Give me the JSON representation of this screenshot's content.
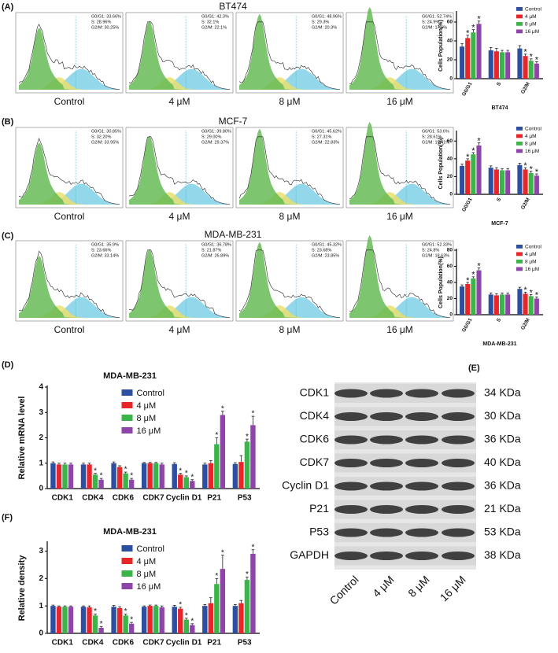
{
  "panel_labels": [
    "(A)",
    "(B)",
    "(C)",
    "(D)",
    "(E)",
    "(F)"
  ],
  "flow": [
    {
      "cell_line": "BT474",
      "conditions": [
        {
          "label": "Control",
          "stats": [
            "G0/G1: 33.66%",
            "S: 28.96%",
            "G2/M: 30.25%"
          ]
        },
        {
          "label": "4 μM",
          "stats": [
            "G0/G1: 42.3%",
            "S: 32.1%",
            "G2/M: 22.1%"
          ]
        },
        {
          "label": "8 μM",
          "stats": [
            "G0/G1: 48.96%",
            "S: 29.3%",
            "G2/M: 20.3%"
          ]
        },
        {
          "label": "16 μM",
          "stats": [
            "G0/G1: 52.74%",
            "S: 24.9%",
            "G2/M: 17.6%"
          ]
        }
      ]
    },
    {
      "cell_line": "MCF-7",
      "conditions": [
        {
          "label": "Control",
          "stats": [
            "G0/G1: 30.85%",
            "S: 32.20%",
            "G2/M: 33.95%"
          ]
        },
        {
          "label": "4 μM",
          "stats": [
            "G0/G1: 39.80%",
            "S: 29.00%",
            "G2/M: 29.37%"
          ]
        },
        {
          "label": "8 μM",
          "stats": [
            "G0/G1: 45.62%",
            "S: 27.31%",
            "G2/M: 22.83%"
          ]
        },
        {
          "label": "16 μM",
          "stats": [
            "G0/G1: 53.6%",
            "S: 28.61%",
            "G2/M: 19.41%"
          ]
        }
      ]
    },
    {
      "cell_line": "MDA-MB-231",
      "conditions": [
        {
          "label": "Control",
          "stats": [
            "G0/G1: 35.9%",
            "S: 23.66%",
            "G2/M: 33.14%"
          ]
        },
        {
          "label": "4 μM",
          "stats": [
            "G0/G1: 36.78%",
            "S: 21.87%",
            "G2/M: 26.89%"
          ]
        },
        {
          "label": "8 μM",
          "stats": [
            "G0/G1: 45.32%",
            "S: 23.68%",
            "G2/M: 23.85%"
          ]
        },
        {
          "label": "16 μM",
          "stats": [
            "G0/G1: 52.33%",
            "S: 24.8%",
            "G2/M: 18.63%"
          ]
        }
      ]
    }
  ],
  "chart_data": [
    {
      "type": "bar",
      "ylabel": "Cells Population(%)",
      "xlabel": "BT474",
      "categories": [
        "G0/G1",
        "S",
        "G2/M"
      ],
      "ylim": [
        0,
        70
      ],
      "yticks": [
        0,
        20,
        40,
        60
      ],
      "legend": "upper right",
      "series": [
        {
          "name": "Control",
          "color": "#2d4fa0",
          "values": [
            34,
            30,
            32
          ],
          "errors": [
            3,
            3,
            3
          ]
        },
        {
          "name": "4 μM",
          "color": "#e8262a",
          "values": [
            43,
            29,
            24
          ],
          "errors": [
            3,
            3,
            2
          ]
        },
        {
          "name": "8 μM",
          "color": "#3bb54a",
          "values": [
            49,
            28,
            19
          ],
          "errors": [
            3,
            2,
            2
          ]
        },
        {
          "name": "16 μM",
          "color": "#8e44a8",
          "values": [
            58,
            28,
            16
          ],
          "errors": [
            3,
            2,
            2
          ]
        }
      ],
      "annotations": [
        {
          "text": "*",
          "series": 1,
          "category": 0
        },
        {
          "text": "*",
          "series": 2,
          "category": 0
        },
        {
          "text": "*",
          "series": 3,
          "category": 0
        },
        {
          "text": "*",
          "series": 1,
          "category": 2
        },
        {
          "text": "*",
          "series": 2,
          "category": 2
        },
        {
          "text": "*",
          "series": 3,
          "category": 2
        }
      ]
    },
    {
      "type": "bar",
      "ylabel": "Cells Population(%)",
      "xlabel": "MCF-7",
      "categories": [
        "G0/G1",
        "S",
        "G2/M"
      ],
      "ylim": [
        0,
        70
      ],
      "yticks": [
        0,
        20,
        40,
        60
      ],
      "legend": "upper right",
      "series": [
        {
          "name": "Control",
          "color": "#2d4fa0",
          "values": [
            32,
            30,
            33
          ],
          "errors": [
            2,
            2,
            2
          ]
        },
        {
          "name": "4 μM",
          "color": "#e8262a",
          "values": [
            38,
            28,
            28
          ],
          "errors": [
            2,
            2,
            2
          ]
        },
        {
          "name": "8 μM",
          "color": "#3bb54a",
          "values": [
            45,
            27,
            24
          ],
          "errors": [
            2,
            2,
            2
          ]
        },
        {
          "name": "16 μM",
          "color": "#8e44a8",
          "values": [
            55,
            27,
            21
          ],
          "errors": [
            3,
            2,
            2
          ]
        }
      ],
      "annotations": [
        {
          "text": "*",
          "series": 1,
          "category": 0
        },
        {
          "text": "*",
          "series": 2,
          "category": 0
        },
        {
          "text": "*",
          "series": 3,
          "category": 0
        },
        {
          "text": "*",
          "series": 1,
          "category": 2
        },
        {
          "text": "*",
          "series": 2,
          "category": 2
        },
        {
          "text": "*",
          "series": 3,
          "category": 2
        }
      ]
    },
    {
      "type": "bar",
      "ylabel": "Cells Population(%)",
      "xlabel": "MDA-MB-231",
      "categories": [
        "G0/G1",
        "S",
        "G2/M"
      ],
      "ylim": [
        0,
        80
      ],
      "yticks": [
        0,
        20,
        40,
        60,
        80
      ],
      "legend": "upper right",
      "series": [
        {
          "name": "Control",
          "color": "#2d4fa0",
          "values": [
            35,
            25,
            32
          ],
          "errors": [
            2,
            2,
            2
          ]
        },
        {
          "name": "4 μM",
          "color": "#e8262a",
          "values": [
            38,
            24,
            26
          ],
          "errors": [
            2,
            2,
            2
          ]
        },
        {
          "name": "8 μM",
          "color": "#3bb54a",
          "values": [
            45,
            25,
            23
          ],
          "errors": [
            2,
            2,
            2
          ]
        },
        {
          "name": "16 μM",
          "color": "#8e44a8",
          "values": [
            55,
            25,
            20
          ],
          "errors": [
            3,
            2,
            2
          ]
        }
      ],
      "annotations": [
        {
          "text": "*",
          "series": 1,
          "category": 0
        },
        {
          "text": "*",
          "series": 2,
          "category": 0
        },
        {
          "text": "*",
          "series": 3,
          "category": 0
        },
        {
          "text": "*",
          "series": 1,
          "category": 2
        },
        {
          "text": "*",
          "series": 2,
          "category": 2
        },
        {
          "text": "*",
          "series": 3,
          "category": 2
        }
      ]
    },
    {
      "type": "bar",
      "title": "MDA-MB-231",
      "ylabel": "Relative mRNA level",
      "categories": [
        "CDK1",
        "CDK4",
        "CDK6",
        "CDK7",
        "Cyclin D1",
        "P21",
        "P53"
      ],
      "ylim": [
        0,
        4
      ],
      "yticks": [
        0,
        1,
        2,
        3,
        4
      ],
      "legend": "upper center",
      "series": [
        {
          "name": "Control",
          "color": "#2d4fa0",
          "values": [
            1,
            0.95,
            1,
            1,
            0.97,
            0.95,
            0.97
          ],
          "errors": [
            0.05,
            0.05,
            0.05,
            0.03,
            0.05,
            0.05,
            0.05
          ]
        },
        {
          "name": "4 μM",
          "color": "#e8262a",
          "values": [
            0.95,
            0.95,
            0.85,
            1,
            0.55,
            1,
            1.05
          ],
          "errors": [
            0.05,
            0.05,
            0.05,
            0.03,
            0.05,
            0.1,
            0.25
          ]
        },
        {
          "name": "8 μM",
          "color": "#3bb54a",
          "values": [
            0.95,
            0.55,
            0.6,
            1,
            0.45,
            1.75,
            1.85
          ],
          "errors": [
            0.05,
            0.05,
            0.05,
            0.03,
            0.05,
            0.25,
            0.1
          ]
        },
        {
          "name": "16 μM",
          "color": "#8e44a8",
          "values": [
            0.95,
            0.35,
            0.35,
            0.95,
            0.3,
            2.9,
            2.5
          ],
          "errors": [
            0.05,
            0.05,
            0.05,
            0.05,
            0.05,
            0.15,
            0.35
          ]
        }
      ],
      "annotations": [
        {
          "text": "*",
          "series": 2,
          "category": 1
        },
        {
          "text": "*",
          "series": 3,
          "category": 1
        },
        {
          "text": "*",
          "series": 2,
          "category": 2
        },
        {
          "text": "*",
          "series": 3,
          "category": 2
        },
        {
          "text": "*",
          "series": 1,
          "category": 4
        },
        {
          "text": "*",
          "series": 2,
          "category": 4
        },
        {
          "text": "*",
          "series": 3,
          "category": 4
        },
        {
          "text": "*",
          "series": 2,
          "category": 5
        },
        {
          "text": "*",
          "series": 3,
          "category": 5
        },
        {
          "text": "*",
          "series": 2,
          "category": 6
        },
        {
          "text": "*",
          "series": 3,
          "category": 6
        }
      ]
    },
    {
      "type": "bar",
      "title": "MDA-MB-231",
      "ylabel": "Relative density",
      "categories": [
        "CDK1",
        "CDK4",
        "CDK6",
        "CDK7",
        "Cyclin D1",
        "P21",
        "P53"
      ],
      "ylim": [
        0,
        3.3
      ],
      "yticks": [
        0,
        1,
        2,
        3
      ],
      "legend": "upper center",
      "series": [
        {
          "name": "Control",
          "color": "#2d4fa0",
          "values": [
            1,
            0.97,
            0.97,
            0.97,
            0.97,
            1,
            1
          ],
          "errors": [
            0.03,
            0.03,
            0.05,
            0.03,
            0.05,
            0.05,
            0.05
          ]
        },
        {
          "name": "4 μM",
          "color": "#e8262a",
          "values": [
            0.97,
            0.95,
            0.92,
            1,
            0.9,
            1.1,
            1.1
          ],
          "errors": [
            0.03,
            0.05,
            0.05,
            0.03,
            0.05,
            0.2,
            0.1
          ]
        },
        {
          "name": "8 μM",
          "color": "#3bb54a",
          "values": [
            0.97,
            0.65,
            0.65,
            1,
            0.5,
            1.8,
            1.95
          ],
          "errors": [
            0.03,
            0.05,
            0.05,
            0.03,
            0.05,
            0.2,
            0.1
          ]
        },
        {
          "name": "16 μM",
          "color": "#8e44a8",
          "values": [
            0.97,
            0.2,
            0.35,
            0.95,
            0.3,
            2.35,
            2.9
          ],
          "errors": [
            0.03,
            0.05,
            0.05,
            0.05,
            0.05,
            0.5,
            0.15
          ]
        }
      ],
      "annotations": [
        {
          "text": "*",
          "series": 2,
          "category": 1
        },
        {
          "text": "*",
          "series": 3,
          "category": 1
        },
        {
          "text": "*",
          "series": 2,
          "category": 2
        },
        {
          "text": "*",
          "series": 3,
          "category": 2
        },
        {
          "text": "*",
          "series": 1,
          "category": 4
        },
        {
          "text": "*",
          "series": 2,
          "category": 4
        },
        {
          "text": "*",
          "series": 3,
          "category": 4
        },
        {
          "text": "*",
          "series": 2,
          "category": 5
        },
        {
          "text": "*",
          "series": 3,
          "category": 5
        },
        {
          "text": "*",
          "series": 2,
          "category": 6
        },
        {
          "text": "*",
          "series": 3,
          "category": 6
        }
      ]
    }
  ],
  "blot": {
    "rows": [
      {
        "protein": "CDK1",
        "size": "34 KDa"
      },
      {
        "protein": "CDK4",
        "size": "30 KDa"
      },
      {
        "protein": "CDK6",
        "size": "36 KDa"
      },
      {
        "protein": "CDK7",
        "size": "40 KDa"
      },
      {
        "protein": "Cyclin D1",
        "size": "36 KDa"
      },
      {
        "protein": "P21",
        "size": "21 KDa"
      },
      {
        "protein": "P53",
        "size": "53 KDa"
      },
      {
        "protein": "GAPDH",
        "size": "38 KDa"
      }
    ],
    "lanes": [
      "Control",
      "4 μM",
      "8 μM",
      "16 μM"
    ]
  }
}
